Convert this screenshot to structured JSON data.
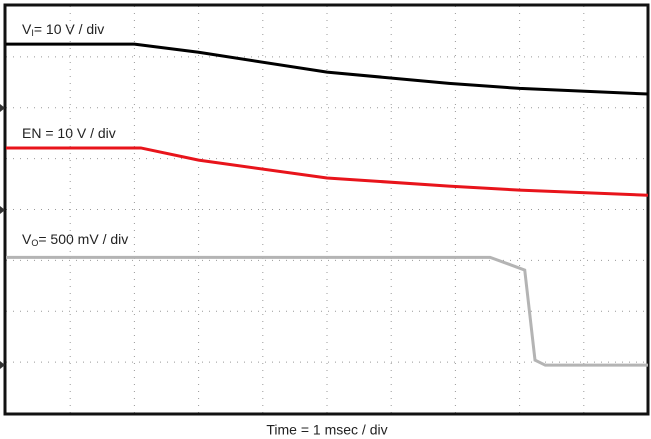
{
  "chart_data": {
    "type": "line",
    "xlabel": "Time = 1 msec / div",
    "xlim": [
      0,
      10
    ],
    "ylim": [
      0,
      8
    ],
    "xticks": [
      0,
      1,
      2,
      3,
      4,
      5,
      6,
      7,
      8,
      9,
      10
    ],
    "yticks": [
      0,
      1,
      2,
      3,
      4,
      5,
      6,
      7,
      8
    ],
    "grid": true,
    "series": [
      {
        "name": "V",
        "name_sub": "I",
        "name_rest": "= 10 V / div",
        "color": "#000000",
        "x": [
          0,
          2.0,
          3.0,
          5.0,
          6.9,
          8.0,
          10
        ],
        "values": [
          7.25,
          7.25,
          7.09,
          6.7,
          6.48,
          6.38,
          6.27
        ]
      },
      {
        "name": "EN = 10 V / div",
        "color": "#e8141b",
        "x": [
          0,
          2.1,
          3.0,
          5.0,
          6.9,
          8.0,
          10
        ],
        "values": [
          5.21,
          5.21,
          4.97,
          4.62,
          4.46,
          4.38,
          4.28
        ]
      },
      {
        "name": "V",
        "name_sub": "O",
        "name_rest": "= 500 mV / div",
        "color": "#b4b4b4",
        "x": [
          0,
          7.54,
          8.08,
          8.24,
          8.4,
          10
        ],
        "values": [
          3.06,
          3.06,
          2.81,
          1.04,
          0.94,
          0.94
        ]
      }
    ]
  }
}
